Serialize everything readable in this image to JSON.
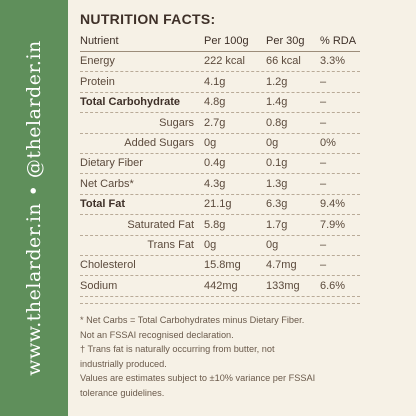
{
  "sidebar": {
    "text": "www.thelarder.in • @thelarder.in"
  },
  "title": "NUTRITION FACTS:",
  "table": {
    "header": [
      "Nutrient",
      "Per 100g",
      "Per 30g",
      "% RDA"
    ],
    "rows": [
      [
        "Energy",
        "222 kcal",
        "66 kcal",
        "3.3%"
      ],
      [
        "Protein",
        "4.1g",
        "1.2g",
        "–"
      ],
      [
        "Total Carbohydrate",
        "4.8g",
        "1.4g",
        "–"
      ],
      [
        "Sugars",
        "2.7g",
        "0.8g",
        "–"
      ],
      [
        "Added Sugars",
        "0g",
        "0g",
        "0%"
      ],
      [
        "Dietary Fiber",
        "0.4g",
        "0.1g",
        "–"
      ],
      [
        "Net Carbs*",
        "4.3g",
        "1.3g",
        "–"
      ],
      [
        "Total Fat",
        "21.1g",
        "6.3g",
        "9.4%"
      ],
      [
        "Saturated Fat",
        "5.8g",
        "1.7g",
        "7.9%"
      ],
      [
        "Trans Fat",
        "0g",
        "0g",
        "–"
      ],
      [
        "Cholesterol",
        "15.8mg",
        "4.7mg",
        "–"
      ],
      [
        "Sodium",
        "442mg",
        "133mg",
        "6.6%"
      ]
    ]
  },
  "footnotes": [
    "* Net Carbs = Total Carbohydrates minus Dietary Fiber.",
    "Not an FSSAI recognised declaration.",
    "† Trans fat is naturally occurring from butter, not",
    "industrially produced.",
    "Values are estimates subject to ±10% variance per FSSAI",
    "tolerance guidelines."
  ]
}
